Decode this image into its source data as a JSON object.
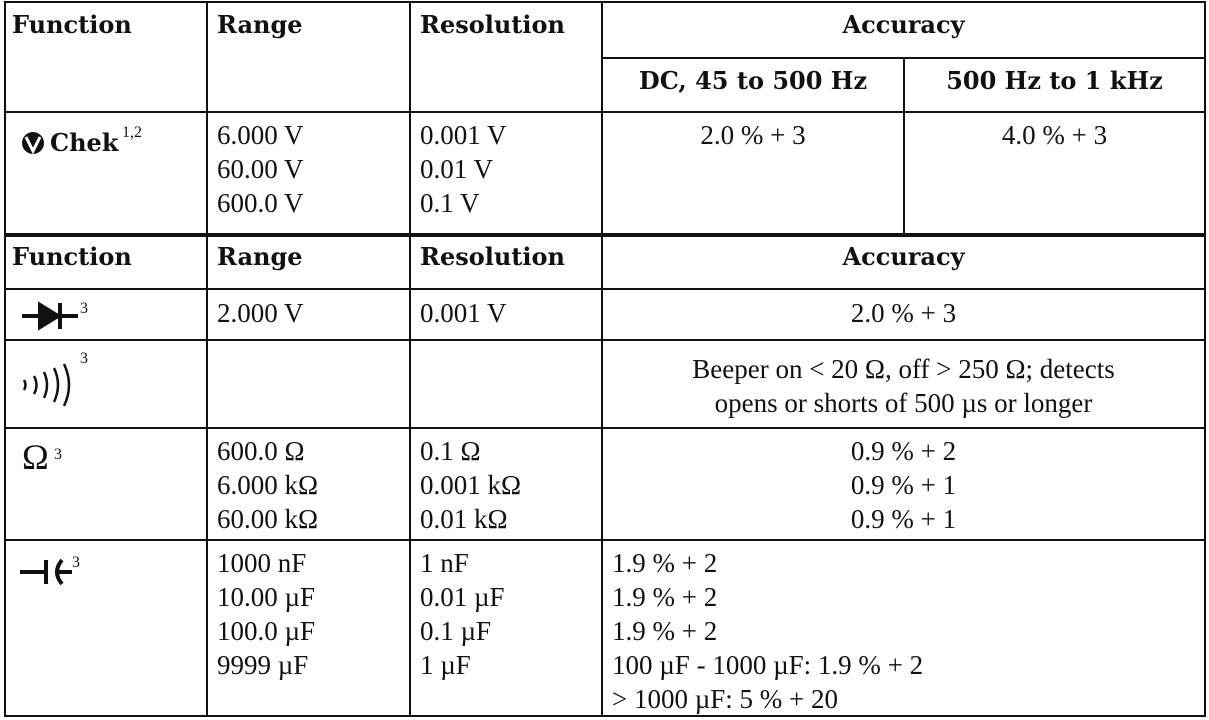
{
  "table1": {
    "header": [
      "Function",
      "Range",
      "Resolution",
      "Accuracy"
    ],
    "subheader": [
      "DC, 45 to 500 Hz",
      "500 Hz to 1 kHz"
    ],
    "row": {
      "function": "Chek",
      "sup": "1,2",
      "range": [
        "6.000 V",
        "60.00 V",
        "600.0 V"
      ],
      "resolution": [
        "0.001 V",
        "0.01 V",
        "0.1 V"
      ],
      "accuracy": [
        "2.0 % + 3",
        "4.0 % + 3"
      ]
    }
  },
  "table2": {
    "header": [
      "Function",
      "Range",
      "Resolution",
      "Accuracy"
    ],
    "rows": [
      {
        "sup": "3",
        "range": [
          "2.000 V"
        ],
        "resolution": [
          "0.001 V"
        ],
        "accuracy": [
          "2.0 % + 3"
        ]
      },
      {
        "sup": "3",
        "range": [],
        "resolution": [],
        "accuracy": [
          "Beeper on < 20 Ω, off > 250 Ω; detects",
          "opens or shorts of 500 µs or longer"
        ]
      },
      {
        "symbol": "Ω",
        "sup": "3",
        "range": [
          "600.0 Ω",
          "6.000 kΩ",
          "60.00 kΩ"
        ],
        "resolution": [
          "0.1 Ω",
          "0.001 kΩ",
          "0.01 kΩ"
        ],
        "accuracy": [
          "0.9 % + 2",
          "0.9 % + 1",
          "0.9 % + 1"
        ]
      },
      {
        "sup": "3",
        "range": [
          "1000 nF",
          "10.00 µF",
          "100.0 µF",
          "9999 µF"
        ],
        "resolution": [
          "1 nF",
          "0.01 µF",
          "0.1 µF",
          "1 µF"
        ],
        "accuracy": [
          "1.9 % + 2",
          "1.9 % + 2",
          "1.9 % + 2",
          "100 µF - 1000 µF: 1.9 % + 2",
          "> 1000 µF: 5 % + 20"
        ]
      }
    ]
  }
}
